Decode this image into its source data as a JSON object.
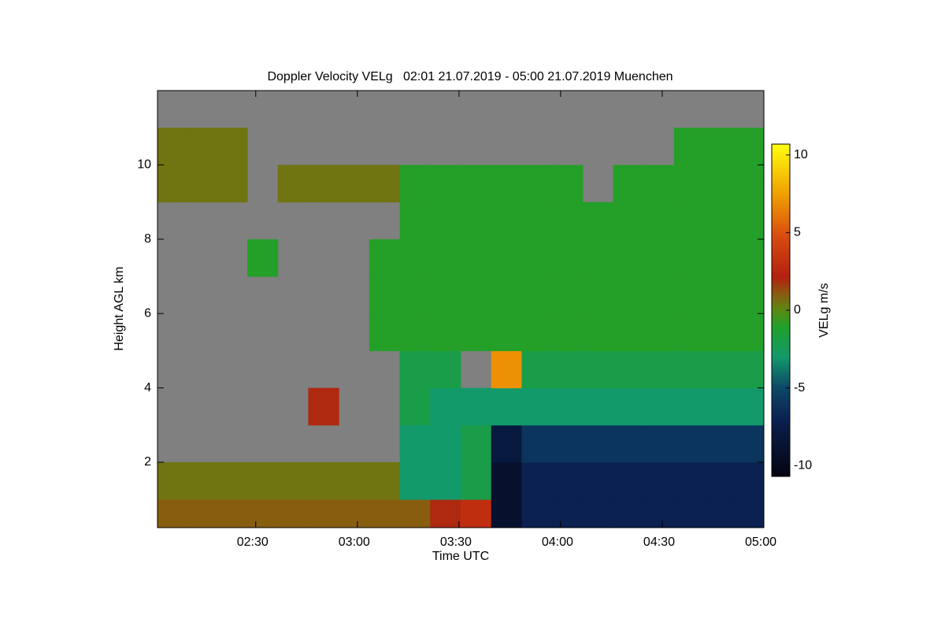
{
  "chart_data": {
    "type": "heatmap",
    "title": "Doppler Velocity VELg   02:01 21.07.2019 - 05:00 21.07.2019 Muenchen",
    "x_label": "Time UTC",
    "y_label": "Height AGL km",
    "xlim": [
      121,
      300
    ],
    "xticks": [
      {
        "value": 150,
        "label": "02:30"
      },
      {
        "value": 180,
        "label": "03:00"
      },
      {
        "value": 210,
        "label": "03:30"
      },
      {
        "value": 240,
        "label": "04:00"
      },
      {
        "value": 270,
        "label": "04:30"
      },
      {
        "value": 300,
        "label": "05:00"
      }
    ],
    "ylim": [
      0.24,
      12
    ],
    "yticks": [
      2,
      4,
      6,
      8,
      10
    ],
    "background": "#808080",
    "x": [
      125,
      134,
      143,
      152,
      161,
      170,
      179,
      188,
      197,
      206,
      215,
      224,
      233,
      242,
      251,
      260,
      269,
      278,
      287,
      296
    ],
    "y": [
      0.5,
      1.5,
      2.5,
      3.5,
      4.5,
      5.5,
      6.5,
      7.5,
      8.5,
      9.5,
      10.5,
      11.5
    ],
    "z": [
      [
        1,
        1,
        1,
        1,
        1,
        1,
        1,
        1,
        1,
        2,
        3,
        -9,
        -7,
        -7,
        -7,
        -7,
        -7,
        -7,
        -7,
        -7
      ],
      [
        0.5,
        0.5,
        0.5,
        0.5,
        0.5,
        0.5,
        0.5,
        0.5,
        -3,
        -3,
        -2,
        -9,
        -7,
        -7,
        -7,
        -7,
        -7,
        -7,
        -7,
        -7
      ],
      [
        null,
        null,
        null,
        null,
        null,
        null,
        null,
        null,
        -3,
        -3,
        -2,
        -8,
        -6,
        -6,
        -6,
        -6,
        -6,
        -6,
        -6,
        -6
      ],
      [
        null,
        null,
        null,
        null,
        null,
        2,
        null,
        null,
        -2,
        -3,
        -3,
        -3,
        -3,
        -3,
        -3,
        -3,
        -3,
        -3,
        -3,
        -3
      ],
      [
        null,
        null,
        null,
        null,
        null,
        null,
        null,
        null,
        -2,
        -2,
        null,
        7,
        -2,
        -2,
        -2,
        -2,
        -2,
        -2,
        -2,
        -2
      ],
      [
        null,
        null,
        null,
        null,
        null,
        null,
        null,
        -1,
        -1,
        -1,
        -1,
        -1,
        -1,
        -1,
        -1,
        -1,
        -1,
        -1,
        -1,
        -1
      ],
      [
        null,
        null,
        null,
        null,
        null,
        null,
        null,
        -1,
        -1,
        -1,
        -1,
        -1,
        -1,
        -1,
        -1,
        -1,
        -1,
        -1,
        -1,
        -1
      ],
      [
        null,
        null,
        null,
        -1,
        null,
        null,
        null,
        -1,
        -1,
        -1,
        -1,
        -1,
        -1,
        -1,
        -1,
        -1,
        -1,
        -1,
        -1,
        -1
      ],
      [
        null,
        null,
        null,
        null,
        null,
        null,
        null,
        null,
        -1,
        -1,
        -1,
        -1,
        -1,
        -1,
        -1,
        -1,
        -1,
        -1,
        -1,
        -1
      ],
      [
        0.5,
        0.5,
        0.5,
        null,
        0.5,
        0.5,
        0.5,
        0.5,
        -1,
        -1,
        -1,
        -1,
        -1,
        -1,
        null,
        -1,
        -1,
        -1,
        -1,
        -1
      ],
      [
        0.5,
        0.5,
        0.5,
        null,
        null,
        null,
        null,
        null,
        null,
        null,
        null,
        null,
        null,
        null,
        null,
        null,
        null,
        -1,
        -1,
        -1
      ],
      [
        null,
        null,
        null,
        null,
        null,
        null,
        null,
        null,
        null,
        null,
        null,
        null,
        null,
        null,
        null,
        null,
        null,
        null,
        null,
        null
      ]
    ],
    "colorbar": {
      "label": "VELg m/s",
      "lim": [
        -10.7,
        10.7
      ],
      "ticks": [
        -10,
        -5,
        0,
        5,
        10
      ]
    }
  }
}
